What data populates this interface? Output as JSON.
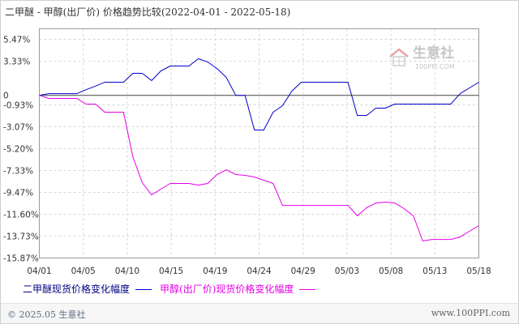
{
  "chart_data": {
    "type": "line",
    "title": "二甲醚 - 甲醇(出厂价) 价格趋势比较(2022-04-01 - 2022-05-18)",
    "x": [
      "04/01",
      "04/02",
      "04/03",
      "04/04",
      "04/05",
      "04/06",
      "04/07",
      "04/08",
      "04/09",
      "04/10",
      "04/11",
      "04/12",
      "04/13",
      "04/14",
      "04/15",
      "04/16",
      "04/17",
      "04/18",
      "04/19",
      "04/20",
      "04/21",
      "04/22",
      "04/23",
      "04/24",
      "04/25",
      "04/26",
      "04/27",
      "04/28",
      "04/29",
      "04/30",
      "05/01",
      "05/02",
      "05/03",
      "05/04",
      "05/05",
      "05/06",
      "05/07",
      "05/08",
      "05/09",
      "05/10",
      "05/11",
      "05/12",
      "05/13",
      "05/14",
      "05/15",
      "05/16",
      "05/17",
      "05/18"
    ],
    "xticks": [
      "04/01",
      "04/05",
      "04/10",
      "04/15",
      "04/19",
      "04/24",
      "04/29",
      "05/03",
      "05/08",
      "05/13",
      "05/18"
    ],
    "yticks": [
      5.47,
      3.33,
      0,
      -0.93,
      -3.07,
      -5.2,
      -7.33,
      -9.47,
      -11.6,
      -13.73,
      -15.87
    ],
    "ytick_labels": [
      "5.47%",
      "3.33%",
      "0",
      "-0.93%",
      "-3.07%",
      "-5.20%",
      "-7.33%",
      "-9.47%",
      "-11.60%",
      "-13.73%",
      "-15.87%"
    ],
    "ylim": [
      -15.87,
      5.47
    ],
    "grid": true,
    "legend_position": "bottom-left",
    "series": [
      {
        "name": "二甲醚现货价格变化幅度",
        "color": "#0000cc",
        "values": [
          0.0,
          0.17,
          0.17,
          0.17,
          0.17,
          0.55,
          0.9,
          1.28,
          1.28,
          1.28,
          2.15,
          2.15,
          1.44,
          2.39,
          2.86,
          2.86,
          2.86,
          3.57,
          3.26,
          2.62,
          1.75,
          0.0,
          0.0,
          -3.38,
          -3.38,
          -1.64,
          -1.01,
          0.41,
          1.28,
          1.28,
          1.28,
          1.28,
          1.28,
          1.28,
          -1.96,
          -1.96,
          -1.25,
          -1.25,
          -0.85,
          -0.85,
          -0.85,
          -0.85,
          -0.85,
          -0.85,
          -0.85,
          0.17,
          0.73,
          1.28
        ]
      },
      {
        "name": "甲醇(出厂价)现货价格变化幅度",
        "color": "#e600e6",
        "values": [
          0.0,
          -0.3,
          -0.3,
          -0.3,
          -0.3,
          -0.85,
          -0.85,
          -1.64,
          -1.64,
          -1.64,
          -5.99,
          -8.52,
          -9.71,
          -9.15,
          -8.6,
          -8.6,
          -8.6,
          -8.76,
          -8.6,
          -7.73,
          -7.26,
          -7.73,
          -7.81,
          -7.97,
          -8.28,
          -8.6,
          -10.74,
          -10.74,
          -10.74,
          -10.74,
          -10.74,
          -10.74,
          -10.74,
          -10.74,
          -11.76,
          -10.97,
          -10.5,
          -10.42,
          -10.5,
          -11.05,
          -11.76,
          -14.21,
          -14.06,
          -14.06,
          -14.06,
          -13.82,
          -13.26,
          -12.71
        ]
      }
    ]
  },
  "watermark": {
    "icon": "house-logo-icon",
    "name": "生意社",
    "url": "100PPI.COM"
  },
  "footer": {
    "copyright": "© 2025.05 生意社",
    "site": "www.100PPI.com"
  },
  "colors": {
    "frame": "#9a9a9a",
    "grid": "#d6d6d6",
    "zero_line": "#444444"
  }
}
